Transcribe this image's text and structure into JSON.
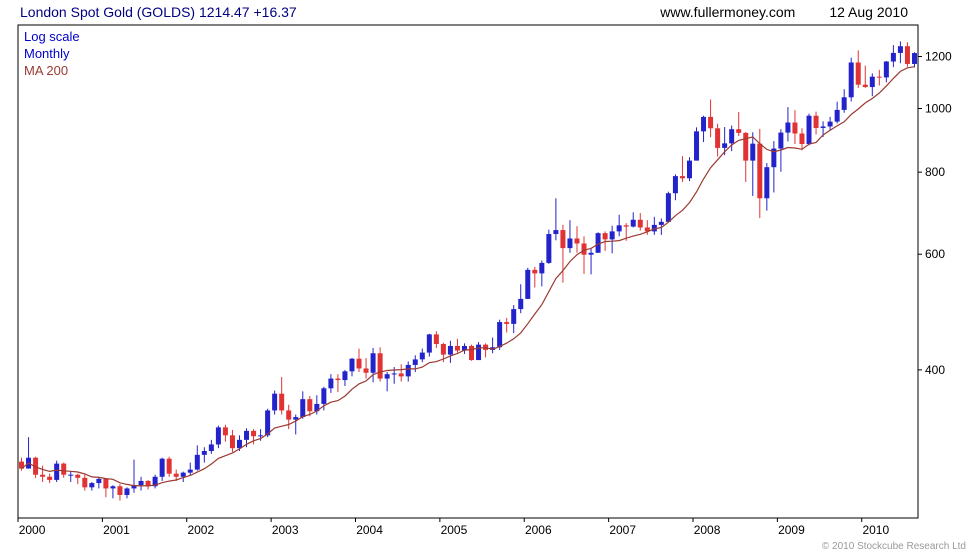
{
  "header": {
    "title": "London Spot Gold (GOLDS) 1214.47 +16.37",
    "website": "www.fullermoney.com",
    "date": "12 Aug 2010"
  },
  "legend": {
    "scale_label": "Log scale",
    "interval_label": "Monthly",
    "ma_label": "MA 200"
  },
  "footer": {
    "copyright": "© 2010 Stockcube Research Ltd"
  },
  "chart_data": {
    "type": "candlestick",
    "title": "London Spot Gold (GOLDS)",
    "last_price": 1214.47,
    "change": "+16.37",
    "scale": "log",
    "interval": "Monthly",
    "overlay": "MA 200",
    "start_month": "2000-01",
    "end_month": "2010-08",
    "x_ticks": [
      2000,
      2001,
      2002,
      2003,
      2004,
      2005,
      2006,
      2007,
      2008,
      2009,
      2010
    ],
    "y_ticks": [
      400,
      600,
      800,
      1000,
      1200
    ],
    "y_range": [
      238,
      1340
    ],
    "ma_window_months": 9,
    "legend_position": "top-left",
    "grid": false,
    "colors": {
      "up": "#2323cb",
      "down": "#e13333",
      "ma": "#9b3a32",
      "axis": "#000000"
    },
    "ohlc": [
      [
        290,
        294,
        281,
        283
      ],
      [
        283,
        316,
        283,
        294
      ],
      [
        294,
        295,
        274,
        277
      ],
      [
        277,
        286,
        270,
        275
      ],
      [
        275,
        278,
        269,
        272
      ],
      [
        272,
        291,
        270,
        288
      ],
      [
        288,
        289,
        274,
        277
      ],
      [
        277,
        280,
        270,
        277
      ],
      [
        277,
        278,
        268,
        274
      ],
      [
        274,
        277,
        262,
        265
      ],
      [
        265,
        270,
        262,
        269
      ],
      [
        269,
        275,
        264,
        273
      ],
      [
        273,
        273,
        256,
        264
      ],
      [
        264,
        267,
        255,
        266
      ],
      [
        266,
        268,
        253,
        258
      ],
      [
        258,
        265,
        255,
        264
      ],
      [
        264,
        292,
        260,
        267
      ],
      [
        267,
        275,
        262,
        271
      ],
      [
        271,
        272,
        263,
        266
      ],
      [
        266,
        277,
        264,
        275
      ],
      [
        275,
        294,
        271,
        293
      ],
      [
        293,
        295,
        275,
        278
      ],
      [
        278,
        282,
        271,
        275
      ],
      [
        275,
        280,
        270,
        279
      ],
      [
        279,
        289,
        276,
        282
      ],
      [
        282,
        307,
        281,
        297
      ],
      [
        297,
        305,
        289,
        301
      ],
      [
        301,
        313,
        298,
        308
      ],
      [
        308,
        329,
        304,
        327
      ],
      [
        327,
        330,
        311,
        318
      ],
      [
        318,
        324,
        300,
        304
      ],
      [
        304,
        318,
        301,
        313
      ],
      [
        313,
        326,
        305,
        323
      ],
      [
        323,
        325,
        308,
        317
      ],
      [
        317,
        325,
        312,
        318
      ],
      [
        318,
        349,
        316,
        347
      ],
      [
        347,
        372,
        342,
        368
      ],
      [
        368,
        390,
        342,
        347
      ],
      [
        347,
        354,
        325,
        336
      ],
      [
        336,
        342,
        319,
        339
      ],
      [
        339,
        371,
        337,
        361
      ],
      [
        361,
        365,
        340,
        346
      ],
      [
        346,
        366,
        342,
        355
      ],
      [
        355,
        377,
        347,
        375
      ],
      [
        375,
        394,
        369,
        388
      ],
      [
        388,
        394,
        370,
        386
      ],
      [
        386,
        400,
        378,
        398
      ],
      [
        398,
        417,
        391,
        416
      ],
      [
        416,
        431,
        397,
        402
      ],
      [
        402,
        417,
        388,
        396
      ],
      [
        396,
        432,
        383,
        424
      ],
      [
        424,
        433,
        384,
        388
      ],
      [
        388,
        397,
        371,
        394
      ],
      [
        394,
        404,
        381,
        395
      ],
      [
        395,
        408,
        384,
        391
      ],
      [
        391,
        412,
        384,
        407
      ],
      [
        407,
        421,
        397,
        415
      ],
      [
        415,
        431,
        411,
        425
      ],
      [
        425,
        454,
        419,
        453
      ],
      [
        453,
        458,
        432,
        438
      ],
      [
        438,
        440,
        411,
        422
      ],
      [
        422,
        443,
        410,
        435
      ],
      [
        435,
        446,
        425,
        428
      ],
      [
        428,
        439,
        423,
        435
      ],
      [
        435,
        437,
        413,
        414
      ],
      [
        414,
        441,
        414,
        437
      ],
      [
        437,
        439,
        418,
        429
      ],
      [
        429,
        448,
        424,
        433
      ],
      [
        433,
        477,
        429,
        473
      ],
      [
        473,
        480,
        456,
        470
      ],
      [
        470,
        502,
        455,
        495
      ],
      [
        495,
        540,
        488,
        513
      ],
      [
        513,
        572,
        513,
        568
      ],
      [
        568,
        574,
        534,
        561
      ],
      [
        561,
        587,
        536,
        582
      ],
      [
        582,
        654,
        580,
        644
      ],
      [
        644,
        730,
        630,
        653
      ],
      [
        653,
        665,
        543,
        613
      ],
      [
        613,
        676,
        603,
        634
      ],
      [
        634,
        662,
        603,
        623
      ],
      [
        623,
        639,
        560,
        599
      ],
      [
        599,
        611,
        559,
        603
      ],
      [
        603,
        648,
        603,
        646
      ],
      [
        646,
        650,
        607,
        632
      ],
      [
        632,
        663,
        602,
        650
      ],
      [
        650,
        689,
        639,
        664
      ],
      [
        664,
        669,
        629,
        661
      ],
      [
        661,
        695,
        659,
        677
      ],
      [
        677,
        693,
        652,
        659
      ],
      [
        659,
        676,
        642,
        650
      ],
      [
        650,
        684,
        642,
        665
      ],
      [
        665,
        680,
        642,
        672
      ],
      [
        672,
        747,
        670,
        743
      ],
      [
        743,
        794,
        725,
        789
      ],
      [
        789,
        846,
        773,
        783
      ],
      [
        783,
        843,
        775,
        833
      ],
      [
        833,
        936,
        833,
        923
      ],
      [
        923,
        975,
        889,
        971
      ],
      [
        971,
        1032,
        904,
        933
      ],
      [
        933,
        948,
        845,
        871
      ],
      [
        871,
        937,
        849,
        885
      ],
      [
        885,
        942,
        861,
        930
      ],
      [
        930,
        988,
        908,
        918
      ],
      [
        918,
        921,
        773,
        833
      ],
      [
        833,
        920,
        736,
        884
      ],
      [
        884,
        931,
        681,
        730
      ],
      [
        730,
        826,
        699,
        814
      ],
      [
        814,
        892,
        745,
        869
      ],
      [
        869,
        930,
        801,
        919
      ],
      [
        919,
        1005,
        891,
        952
      ],
      [
        952,
        994,
        883,
        916
      ],
      [
        916,
        933,
        864,
        883
      ],
      [
        883,
        982,
        879,
        975
      ],
      [
        975,
        989,
        913,
        934
      ],
      [
        934,
        956,
        905,
        939
      ],
      [
        939,
        971,
        925,
        955
      ],
      [
        955,
        1024,
        949,
        995
      ],
      [
        995,
        1070,
        985,
        1040
      ],
      [
        1040,
        1195,
        1025,
        1175
      ],
      [
        1175,
        1226,
        1075,
        1087
      ],
      [
        1087,
        1162,
        1075,
        1078
      ],
      [
        1078,
        1131,
        1044,
        1118
      ],
      [
        1118,
        1145,
        1084,
        1115
      ],
      [
        1115,
        1181,
        1096,
        1179
      ],
      [
        1179,
        1249,
        1156,
        1215
      ],
      [
        1215,
        1265,
        1172,
        1244
      ],
      [
        1244,
        1261,
        1157,
        1169
      ],
      [
        1169,
        1218,
        1155,
        1214.47
      ]
    ]
  }
}
